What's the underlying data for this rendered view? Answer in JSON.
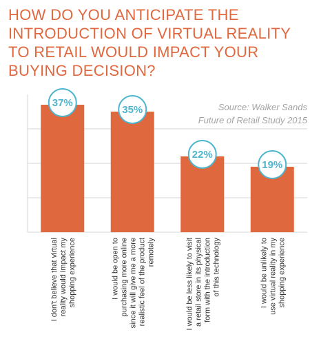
{
  "chart_data": {
    "type": "bar",
    "title": "HOW DO YOU ANTICIPATE THE INTRODUCTION OF VIRTUAL REALITY TO RETAIL WOULD IMPACT YOUR BUYING DECISION?",
    "source_lines": [
      "Source: Walker Sands",
      "Future of Retail Study 2015"
    ],
    "categories": [
      [
        "I don't believe that virtual",
        "reality would impact my",
        "shopping experience"
      ],
      [
        "I would be open to",
        "purchasing more online",
        "since it will give me a more",
        "realistic feel of the product",
        "remotely"
      ],
      [
        "I would be less likely to visit",
        "a retail store in its physical",
        "form with the introduction",
        "of this technology"
      ],
      [
        "I would be unlikely to",
        "use virtual reality in my",
        "shopping experience"
      ]
    ],
    "values": [
      37,
      35,
      22,
      19
    ],
    "value_labels": [
      "37%",
      "35%",
      "22%",
      "19%"
    ],
    "ylim": [
      0,
      40
    ],
    "grid": true,
    "xlabel": "",
    "ylabel": "",
    "colors": {
      "bar": "#e0683e",
      "title": "#e0683e",
      "badge_border": "#4eb5ce",
      "badge_text": "#4eb5ce",
      "grid": "#d5d5d5",
      "source": "#a3a3a3",
      "label": "#333333"
    }
  }
}
